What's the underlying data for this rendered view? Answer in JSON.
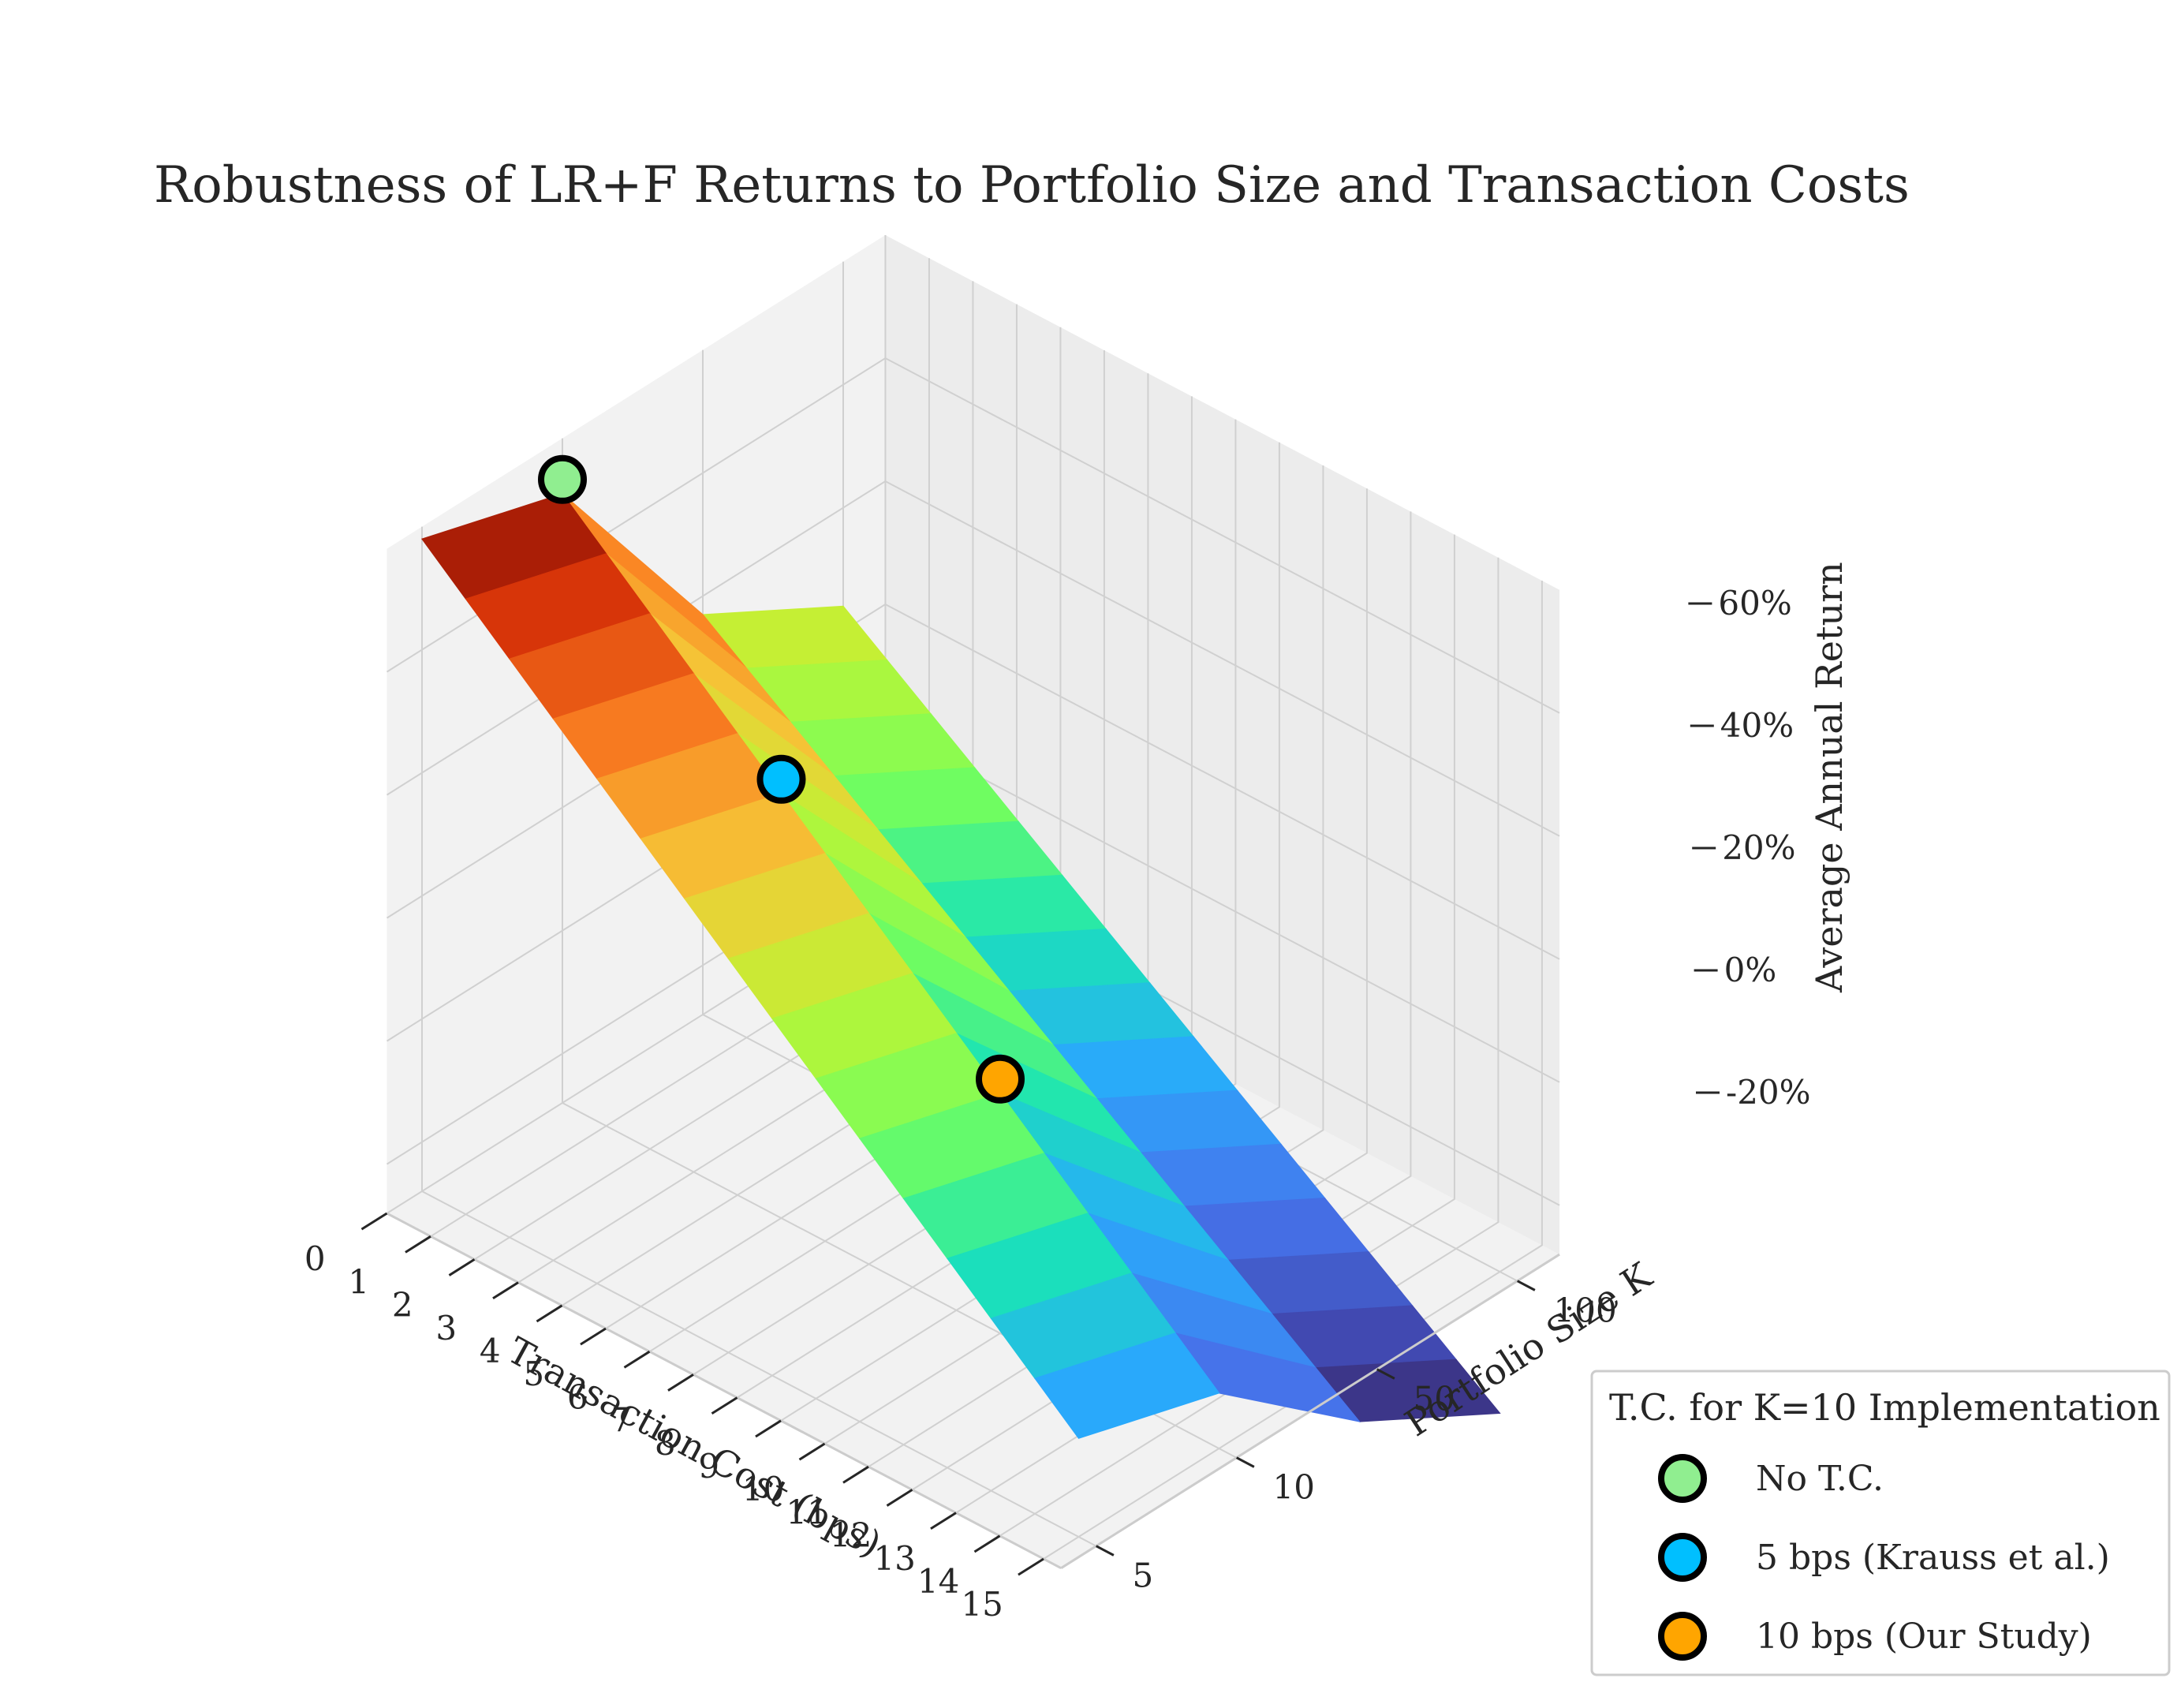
{
  "chart_data": {
    "type": "surface3d",
    "title": "Robustness of LR+F Returns to Portfolio Size and Transaction Costs",
    "xlabel": "Transaction Cost (bps)",
    "ylabel": "Portfolio Size K",
    "zlabel": "Average Annual Return",
    "x_ticks": [
      "0",
      "1",
      "2",
      "3",
      "4",
      "5",
      "6",
      "7",
      "8",
      "9",
      "10",
      "11",
      "12",
      "13",
      "14",
      "15"
    ],
    "x_values": [
      0,
      1,
      2,
      3,
      4,
      5,
      6,
      7,
      8,
      9,
      10,
      11,
      12,
      13,
      14,
      15
    ],
    "y_ticks": [
      "5",
      "10",
      "50",
      "100"
    ],
    "z_ticks": [
      "-20%",
      "0%",
      "20%",
      "40%",
      "60%"
    ],
    "z_tick_values": [
      -20,
      0,
      20,
      40,
      60
    ],
    "zlim": [
      -28,
      80
    ],
    "colormap": "turbo",
    "grid": true,
    "surface": {
      "rows": [
        "5",
        "10",
        "50",
        "100"
      ],
      "values": [
        [
          78,
          72,
          66,
          60,
          54,
          48,
          42,
          36,
          30,
          24,
          18,
          12,
          6,
          0,
          -6,
          -12
        ],
        [
          71,
          65,
          59,
          53,
          47,
          41,
          35,
          29,
          23,
          17,
          11,
          5,
          -1,
          -7,
          -13,
          -19
        ],
        [
          37,
          32,
          27,
          22,
          17,
          12,
          7,
          2,
          -3,
          -8,
          -13,
          -18,
          -23,
          -28,
          -33,
          -38
        ],
        [
          24,
          19,
          14,
          9,
          4,
          -1,
          -6,
          -11,
          -16,
          -21,
          -26,
          -31,
          -36,
          -41,
          -46,
          -51
        ]
      ]
    },
    "markers": [
      {
        "label": "No T.C.",
        "x": 0,
        "y": "10",
        "z": 71,
        "color": "#90ee90"
      },
      {
        "label": "5 bps (Krauss et al.)",
        "x": 5,
        "y": "10",
        "z": 41,
        "color": "#00bfff"
      },
      {
        "label": "10 bps (Our Study)",
        "x": 10,
        "y": "10",
        "z": 11,
        "color": "#ffa500"
      }
    ],
    "legend": {
      "title": "T.C. for K=10 Implementation",
      "position": "bottom-right"
    }
  }
}
